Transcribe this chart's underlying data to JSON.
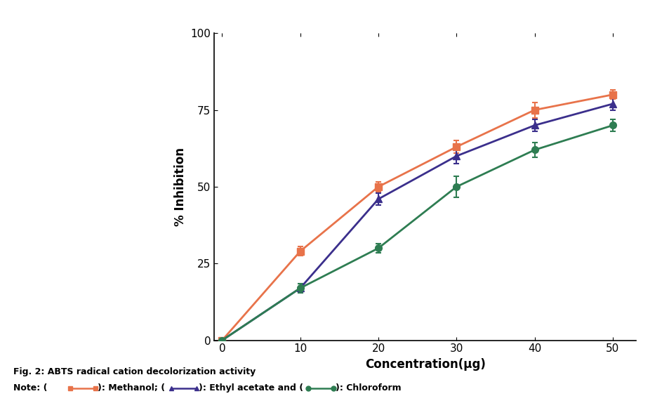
{
  "x": [
    0,
    10,
    20,
    30,
    40,
    50
  ],
  "methanol_y": [
    0,
    29,
    50,
    63,
    75,
    80
  ],
  "methanol_err": [
    0,
    1.5,
    1.5,
    2.0,
    2.5,
    1.5
  ],
  "ethyl_y": [
    0,
    17,
    46,
    60,
    70,
    77
  ],
  "ethyl_err": [
    0,
    1.5,
    2.0,
    2.5,
    2.0,
    2.0
  ],
  "chloroform_y": [
    0,
    17,
    30,
    50,
    62,
    70
  ],
  "chloroform_err": [
    0,
    1.5,
    1.5,
    3.5,
    2.5,
    2.0
  ],
  "methanol_color": "#E8734A",
  "ethyl_color": "#3B2F8C",
  "chloroform_color": "#2E7D52",
  "xlabel": "Concentration(μg)",
  "ylabel": "% Inhibition",
  "xlim": [
    -1,
    53
  ],
  "ylim": [
    0,
    100
  ],
  "xticks": [
    0,
    10,
    20,
    30,
    40,
    50
  ],
  "yticks": [
    0,
    25,
    50,
    75,
    100
  ],
  "fig_caption": "Fig. 2: ABTS radical cation decolorization activity",
  "xlabel_fontsize": 12,
  "ylabel_fontsize": 12,
  "tick_fontsize": 11,
  "caption_fontsize": 9,
  "linewidth": 2.0,
  "markersize": 7,
  "background_color": "#ffffff"
}
